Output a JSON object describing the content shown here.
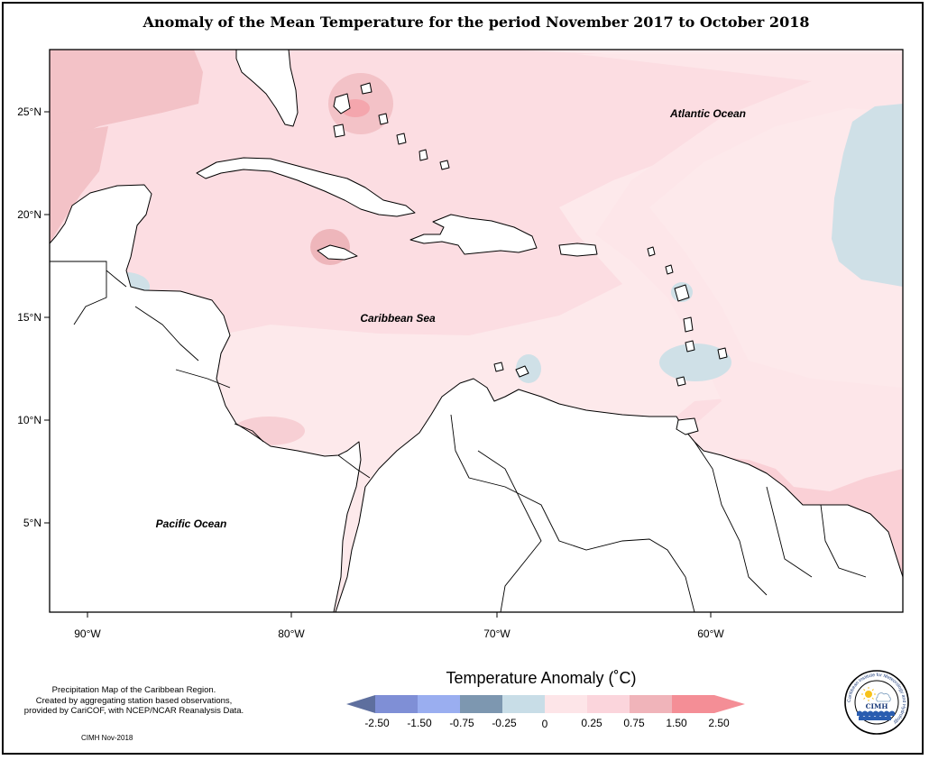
{
  "title": "Anomaly of the Mean Temperature for the period November 2017 to October 2018",
  "axes": {
    "lat_ticks": [
      "25°N",
      "20°N",
      "15°N",
      "10°N",
      "5°N"
    ],
    "lon_ticks": [
      "90°W",
      "80°W",
      "70°W",
      "60°W"
    ]
  },
  "labels": {
    "atlantic": "Atlantic Ocean",
    "caribbean": "Caribbean Sea",
    "pacific": "Pacific Ocean"
  },
  "legend": {
    "title": "Temperature Anomaly (˚C)",
    "ticks": [
      "-2.50",
      "-1.50",
      "-0.75",
      "-0.25",
      "0",
      "0.25",
      "0.75",
      "1.50",
      "2.50"
    ],
    "colors": [
      "#5e6f9e",
      "#7f8fd6",
      "#9aaef0",
      "#7d97b0",
      "#c8dde7",
      "#fde5e8",
      "#fbd5dc",
      "#f0b4ba",
      "#f48e96"
    ]
  },
  "note_lines": [
    "Precipitation Map of the Caribbean Region.",
    "Created by aggregating station based observations,",
    "provided by CariCOF, with NCEP/NCAR Reanalysis Data."
  ],
  "credit": "CIMH Nov-2018",
  "logo": {
    "name": "CIMH",
    "ring_text": "Caribbean Institute for Meteorology and Hydrology"
  }
}
